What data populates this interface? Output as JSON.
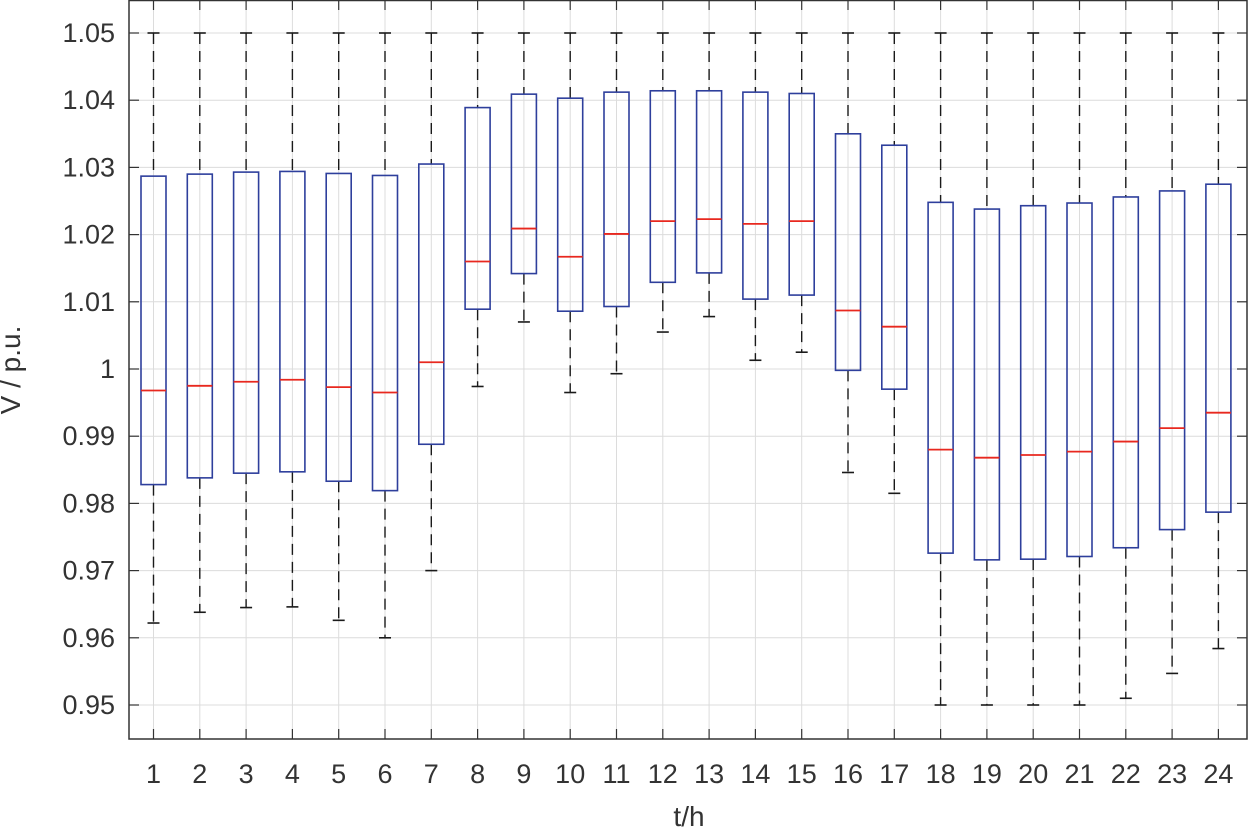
{
  "chart_data": {
    "type": "box",
    "title": "",
    "xlabel": "t/h",
    "ylabel": "V / p.u.",
    "ylim": [
      0.945,
      1.05
    ],
    "yticks": [
      0.95,
      0.96,
      0.97,
      0.98,
      0.99,
      1,
      1.01,
      1.02,
      1.03,
      1.04,
      1.05
    ],
    "ytick_labels": [
      "0.95",
      "0.96",
      "0.97",
      "0.98",
      "0.99",
      "1",
      "1.01",
      "1.02",
      "1.03",
      "1.04",
      "1.05"
    ],
    "grid": true,
    "colors": {
      "box": "#2e3f9c",
      "median": "#e8281f",
      "whisker": "#1a1a1a",
      "grid": "#dcdcdc",
      "axis": "#333333"
    },
    "categories": [
      "1",
      "2",
      "3",
      "4",
      "5",
      "6",
      "7",
      "8",
      "9",
      "10",
      "11",
      "12",
      "13",
      "14",
      "15",
      "16",
      "17",
      "18",
      "19",
      "20",
      "21",
      "22",
      "23",
      "24"
    ],
    "boxes": [
      {
        "min": 0.9622,
        "q1": 0.9828,
        "median": 0.9968,
        "q3": 1.0287,
        "max": 1.05
      },
      {
        "min": 0.9638,
        "q1": 0.9838,
        "median": 0.9975,
        "q3": 1.029,
        "max": 1.05
      },
      {
        "min": 0.9645,
        "q1": 0.9845,
        "median": 0.9981,
        "q3": 1.0293,
        "max": 1.05
      },
      {
        "min": 0.9646,
        "q1": 0.9847,
        "median": 0.9984,
        "q3": 1.0294,
        "max": 1.05
      },
      {
        "min": 0.9626,
        "q1": 0.9833,
        "median": 0.9973,
        "q3": 1.0291,
        "max": 1.05
      },
      {
        "min": 0.96,
        "q1": 0.9819,
        "median": 0.9965,
        "q3": 1.0288,
        "max": 1.05
      },
      {
        "min": 0.97,
        "q1": 0.9888,
        "median": 1.001,
        "q3": 1.0305,
        "max": 1.05
      },
      {
        "min": 0.9974,
        "q1": 1.0089,
        "median": 1.016,
        "q3": 1.0389,
        "max": 1.05
      },
      {
        "min": 1.007,
        "q1": 1.0142,
        "median": 1.0209,
        "q3": 1.0409,
        "max": 1.05
      },
      {
        "min": 0.9965,
        "q1": 1.0086,
        "median": 1.0167,
        "q3": 1.0403,
        "max": 1.05
      },
      {
        "min": 0.9993,
        "q1": 1.0093,
        "median": 1.0201,
        "q3": 1.0412,
        "max": 1.05
      },
      {
        "min": 1.0055,
        "q1": 1.0129,
        "median": 1.022,
        "q3": 1.0414,
        "max": 1.05
      },
      {
        "min": 1.0078,
        "q1": 1.0143,
        "median": 1.0223,
        "q3": 1.0414,
        "max": 1.05
      },
      {
        "min": 1.0013,
        "q1": 1.0104,
        "median": 1.0216,
        "q3": 1.0412,
        "max": 1.05
      },
      {
        "min": 1.0025,
        "q1": 1.011,
        "median": 1.022,
        "q3": 1.041,
        "max": 1.05
      },
      {
        "min": 0.9846,
        "q1": 0.9998,
        "median": 1.0087,
        "q3": 1.035,
        "max": 1.05
      },
      {
        "min": 0.9815,
        "q1": 0.997,
        "median": 1.0063,
        "q3": 1.0333,
        "max": 1.05
      },
      {
        "min": 0.95,
        "q1": 0.9726,
        "median": 0.988,
        "q3": 1.0248,
        "max": 1.05
      },
      {
        "min": 0.95,
        "q1": 0.9716,
        "median": 0.9868,
        "q3": 1.0238,
        "max": 1.05
      },
      {
        "min": 0.95,
        "q1": 0.9717,
        "median": 0.9872,
        "q3": 1.0243,
        "max": 1.05
      },
      {
        "min": 0.95,
        "q1": 0.9721,
        "median": 0.9877,
        "q3": 1.0247,
        "max": 1.05
      },
      {
        "min": 0.951,
        "q1": 0.9734,
        "median": 0.9892,
        "q3": 1.0256,
        "max": 1.05
      },
      {
        "min": 0.9547,
        "q1": 0.9761,
        "median": 0.9912,
        "q3": 1.0265,
        "max": 1.05
      },
      {
        "min": 0.9584,
        "q1": 0.9787,
        "median": 0.9935,
        "q3": 1.0275,
        "max": 1.05
      }
    ]
  }
}
